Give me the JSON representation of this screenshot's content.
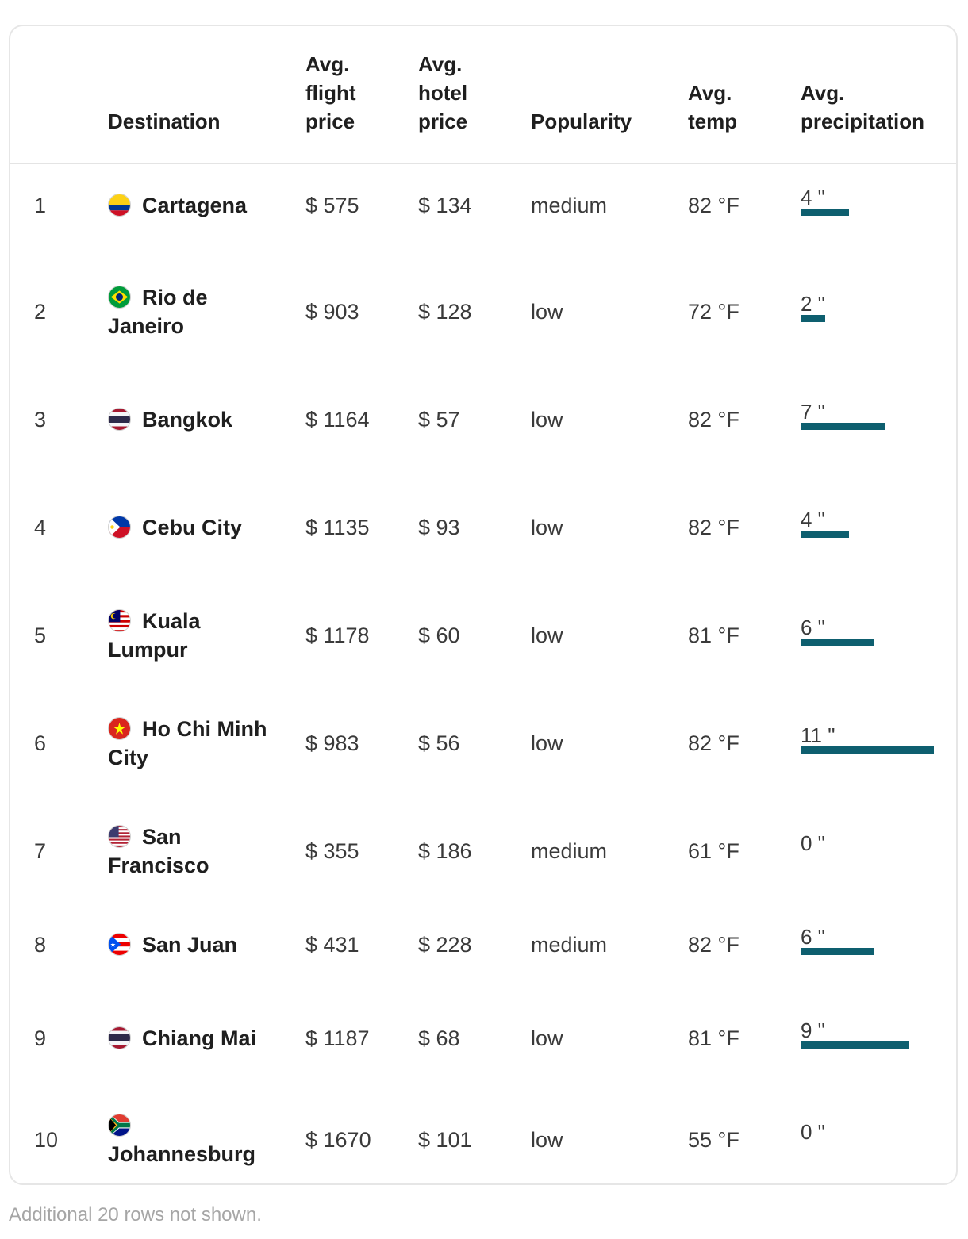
{
  "table": {
    "headers": {
      "destination": "Destination",
      "flight": "Avg. flight price",
      "hotel": "Avg. hotel price",
      "popularity": "Popularity",
      "temp": "Avg. temp",
      "precip": "Avg. precipitation"
    },
    "precip_max_inches": 11,
    "rows": [
      {
        "rank": "1",
        "destination": "Cartagena",
        "flag": "colombia-flag-icon",
        "flight": "$ 575",
        "hotel": "$ 134",
        "popularity": "medium",
        "temp": "82 °F",
        "precip": "4 \"",
        "precip_value": 4
      },
      {
        "rank": "2",
        "destination": "Rio de Janeiro",
        "flag": "brazil-flag-icon",
        "flight": "$ 903",
        "hotel": "$ 128",
        "popularity": "low",
        "temp": "72 °F",
        "precip": "2 \"",
        "precip_value": 2
      },
      {
        "rank": "3",
        "destination": "Bangkok",
        "flag": "thailand-flag-icon",
        "flight": "$ 1164",
        "hotel": "$ 57",
        "popularity": "low",
        "temp": "82 °F",
        "precip": "7 \"",
        "precip_value": 7
      },
      {
        "rank": "4",
        "destination": "Cebu City",
        "flag": "philippines-flag-icon",
        "flight": "$ 1135",
        "hotel": "$ 93",
        "popularity": "low",
        "temp": "82 °F",
        "precip": "4 \"",
        "precip_value": 4
      },
      {
        "rank": "5",
        "destination": "Kuala Lumpur",
        "flag": "malaysia-flag-icon",
        "flight": "$ 1178",
        "hotel": "$ 60",
        "popularity": "low",
        "temp": "81 °F",
        "precip": "6 \"",
        "precip_value": 6
      },
      {
        "rank": "6",
        "destination": "Ho Chi Minh City",
        "flag": "vietnam-flag-icon",
        "flight": "$ 983",
        "hotel": "$ 56",
        "popularity": "low",
        "temp": "82 °F",
        "precip": "11 \"",
        "precip_value": 11
      },
      {
        "rank": "7",
        "destination": "San Francisco",
        "flag": "usa-flag-icon",
        "flight": "$ 355",
        "hotel": "$ 186",
        "popularity": "medium",
        "temp": "61 °F",
        "precip": "0 \"",
        "precip_value": 0
      },
      {
        "rank": "8",
        "destination": "San Juan",
        "flag": "puerto-rico-flag-icon",
        "flight": "$ 431",
        "hotel": "$ 228",
        "popularity": "medium",
        "temp": "82 °F",
        "precip": "6 \"",
        "precip_value": 6
      },
      {
        "rank": "9",
        "destination": "Chiang Mai",
        "flag": "thailand-flag-icon",
        "flight": "$ 1187",
        "hotel": "$ 68",
        "popularity": "low",
        "temp": "81 °F",
        "precip": "9 \"",
        "precip_value": 9
      },
      {
        "rank": "10",
        "destination": "Johannesburg",
        "flag": "south-africa-flag-icon",
        "flight": "$ 1670",
        "hotel": "$ 101",
        "popularity": "low",
        "temp": "55 °F",
        "precip": "0 \"",
        "precip_value": 0
      }
    ]
  },
  "colors": {
    "precip_bar": "#0e5f6f"
  },
  "footer": {
    "note": "Additional 20 rows not shown."
  }
}
